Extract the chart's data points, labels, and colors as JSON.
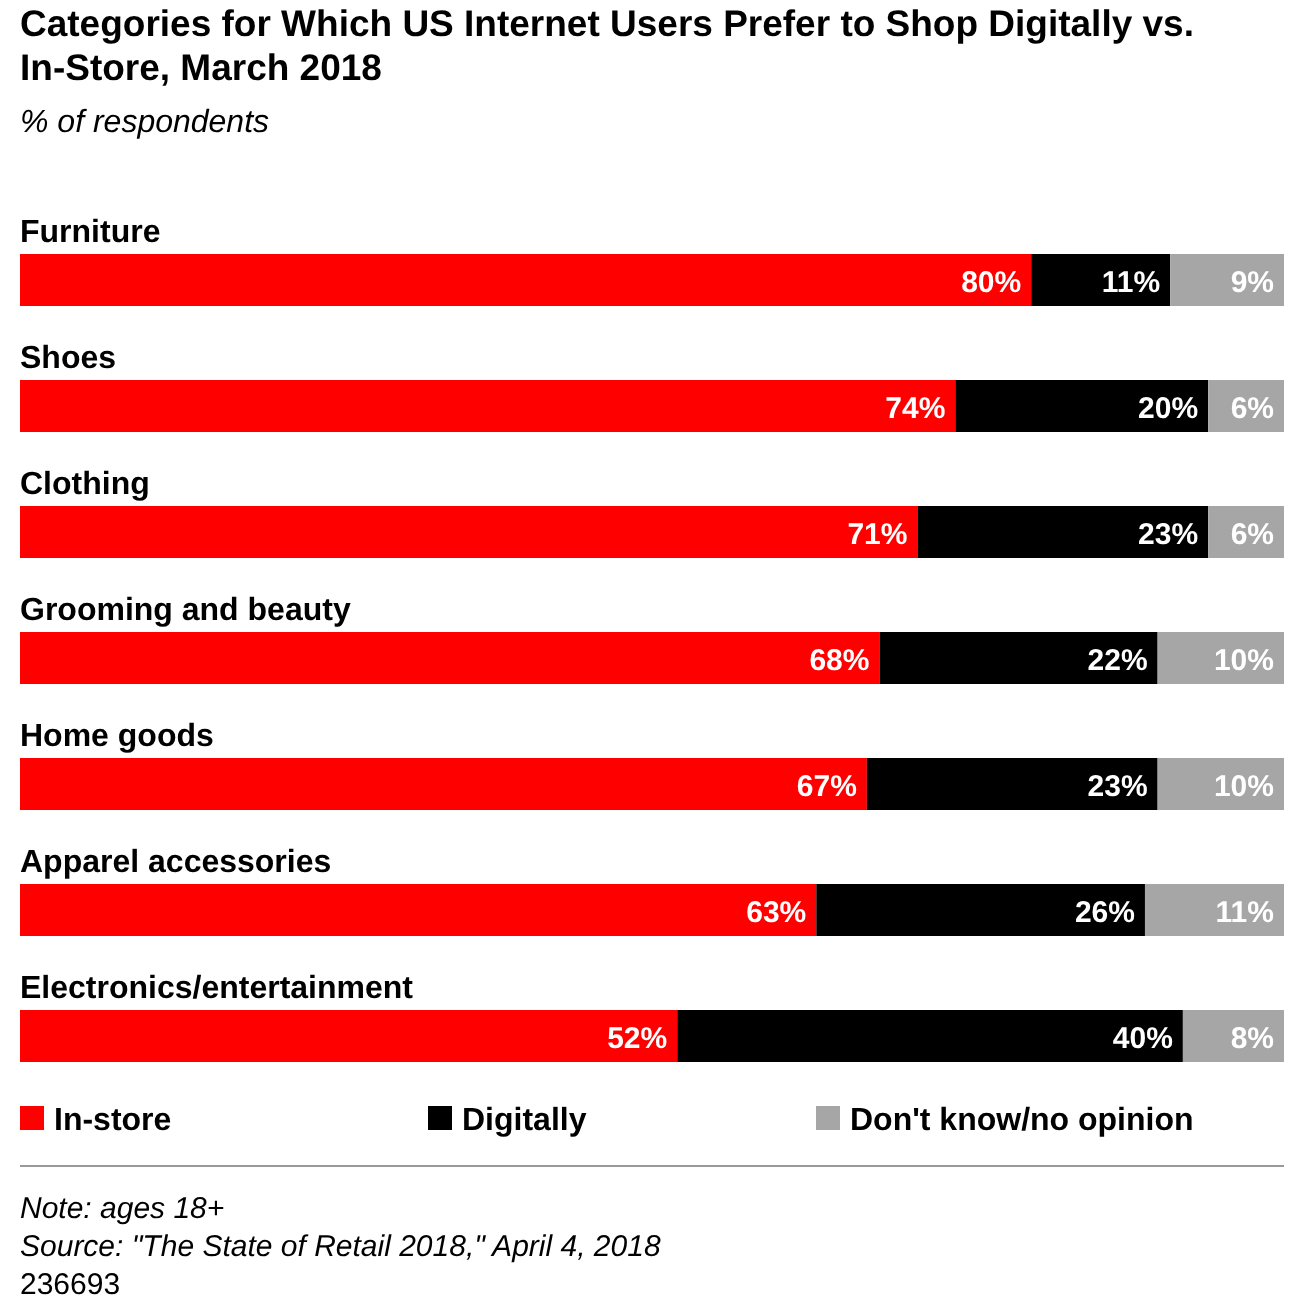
{
  "chart_data": {
    "type": "bar",
    "orientation": "horizontal",
    "stacked": true,
    "title": "Categories for Which US Internet Users Prefer to Shop Digitally vs. In-Store, March 2018",
    "subtitle": "% of respondents",
    "categories": [
      "Furniture",
      "Shoes",
      "Clothing",
      "Grooming and beauty",
      "Home goods",
      "Apparel accessories",
      "Electronics/entertainment"
    ],
    "series": [
      {
        "name": "In-store",
        "color": "#ff0000",
        "values": [
          80,
          74,
          71,
          68,
          67,
          63,
          52
        ],
        "value_labels": [
          "80%",
          "74%",
          "71%",
          "68%",
          "67%",
          "63%",
          "52%"
        ]
      },
      {
        "name": "Digitally",
        "color": "#000000",
        "values": [
          11,
          20,
          23,
          22,
          23,
          26,
          40
        ],
        "value_labels": [
          "11%",
          "20%",
          "23%",
          "22%",
          "23%",
          "26%",
          "40%"
        ]
      },
      {
        "name": "Don't know/no opinion",
        "color": "#a6a6a6",
        "values": [
          9,
          6,
          6,
          10,
          10,
          11,
          8
        ],
        "value_labels": [
          "9%",
          "6%",
          "6%",
          "10%",
          "10%",
          "11%",
          "8%"
        ]
      }
    ],
    "xlim": [
      0,
      100
    ],
    "legend": "bottom",
    "annotations": [
      "Note: ages 18+",
      "Source: \"The State of Retail 2018,\" April 4, 2018",
      "236693"
    ]
  }
}
